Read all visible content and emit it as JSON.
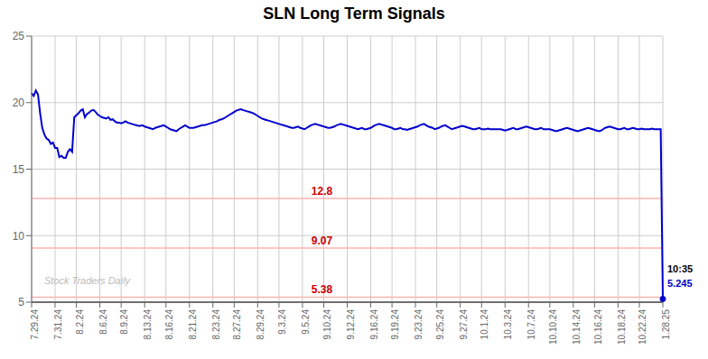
{
  "chart_data": {
    "type": "line",
    "title": "SLN Long Term Signals",
    "color": "#0000cc",
    "grid": true,
    "ylim": [
      5,
      25
    ],
    "yticks": [
      5,
      10,
      15,
      20,
      25
    ],
    "categories": [
      "7.29.24",
      null,
      null,
      null,
      null,
      null,
      null,
      null,
      null,
      null,
      null,
      "7.31.24",
      null,
      null,
      null,
      null,
      null,
      null,
      null,
      null,
      null,
      "8.2.24",
      null,
      null,
      null,
      null,
      null,
      null,
      null,
      null,
      null,
      null,
      "8.6.24",
      null,
      null,
      null,
      null,
      null,
      null,
      null,
      null,
      null,
      "8.9.24",
      null,
      null,
      null,
      null,
      null,
      null,
      null,
      null,
      null,
      null,
      "8.13.24",
      null,
      null,
      null,
      null,
      null,
      null,
      null,
      null,
      null,
      "8.16.24",
      null,
      null,
      null,
      null,
      null,
      null,
      null,
      null,
      null,
      null,
      "8.21.24",
      null,
      null,
      null,
      null,
      null,
      null,
      null,
      null,
      null,
      null,
      "8.23.24",
      null,
      null,
      null,
      null,
      null,
      null,
      null,
      null,
      null,
      "8.27.24",
      null,
      null,
      null,
      null,
      null,
      null,
      null,
      null,
      null,
      null,
      "8.29.24",
      null,
      null,
      null,
      null,
      null,
      null,
      null,
      null,
      null,
      "9.3.24",
      null,
      null,
      null,
      null,
      null,
      null,
      null,
      null,
      null,
      null,
      "9.5.24",
      null,
      null,
      null,
      null,
      null,
      null,
      null,
      null,
      null,
      "9.10.24",
      null,
      null,
      null,
      null,
      null,
      null,
      null,
      null,
      null,
      null,
      "9.12.24",
      null,
      null,
      null,
      null,
      null,
      null,
      null,
      null,
      null,
      null,
      "9.16.24",
      null,
      null,
      null,
      null,
      null,
      null,
      null,
      null,
      null,
      "9.19.24",
      null,
      null,
      null,
      null,
      null,
      null,
      null,
      null,
      null,
      null,
      "9.23.24",
      null,
      null,
      null,
      null,
      null,
      null,
      null,
      null,
      null,
      "9.25.24",
      null,
      null,
      null,
      null,
      null,
      null,
      null,
      null,
      null,
      null,
      "9.27.24",
      null,
      null,
      null,
      null,
      null,
      null,
      null,
      null,
      null,
      "10.1.24",
      null,
      null,
      null,
      null,
      null,
      null,
      null,
      null,
      null,
      null,
      "10.3.24",
      null,
      null,
      null,
      null,
      null,
      null,
      null,
      null,
      null,
      null,
      "10.7.24",
      null,
      null,
      null,
      null,
      null,
      null,
      null,
      null,
      null,
      "10.10.24",
      null,
      null,
      null,
      null,
      null,
      null,
      null,
      null,
      null,
      null,
      "10.14.24",
      null,
      null,
      null,
      null,
      null,
      null,
      null,
      null,
      null,
      "10.16.24",
      null,
      null,
      null,
      null,
      null,
      null,
      null,
      null,
      null,
      null,
      "10.18.24",
      null,
      null,
      null,
      null,
      null,
      null,
      null,
      null,
      null,
      "10.22.24",
      null,
      null,
      null,
      null,
      null,
      null,
      null,
      null,
      null,
      null,
      "1.28.25"
    ],
    "values": [
      20.7,
      20.5,
      20.9,
      20.6,
      19.2,
      18.1,
      17.6,
      17.3,
      17.2,
      16.9,
      17.0,
      16.6,
      16.6,
      15.9,
      16.0,
      15.85,
      15.85,
      16.3,
      16.5,
      16.3,
      18.9,
      19.05,
      19.2,
      19.4,
      19.5,
      18.9,
      19.15,
      19.25,
      19.4,
      19.45,
      19.3,
      19.1,
      19.0,
      18.9,
      18.85,
      18.8,
      18.9,
      18.7,
      18.75,
      18.6,
      18.5,
      18.5,
      18.45,
      18.5,
      18.6,
      18.5,
      18.45,
      18.4,
      18.35,
      18.3,
      18.25,
      18.25,
      18.3,
      18.2,
      18.15,
      18.1,
      18.05,
      18.0,
      18.1,
      18.15,
      18.2,
      18.25,
      18.3,
      18.2,
      18.1,
      18.0,
      17.95,
      17.9,
      17.85,
      18.0,
      18.1,
      18.2,
      18.3,
      18.2,
      18.1,
      18.1,
      18.1,
      18.15,
      18.2,
      18.25,
      18.3,
      18.3,
      18.35,
      18.4,
      18.45,
      18.5,
      18.55,
      18.6,
      18.7,
      18.75,
      18.8,
      18.9,
      19.0,
      19.1,
      19.2,
      19.3,
      19.4,
      19.45,
      19.5,
      19.45,
      19.4,
      19.35,
      19.3,
      19.25,
      19.2,
      19.1,
      19.0,
      18.9,
      18.8,
      18.75,
      18.7,
      18.65,
      18.6,
      18.55,
      18.5,
      18.45,
      18.4,
      18.35,
      18.3,
      18.25,
      18.2,
      18.15,
      18.1,
      18.1,
      18.15,
      18.2,
      18.1,
      18.05,
      18.0,
      18.1,
      18.2,
      18.3,
      18.35,
      18.4,
      18.35,
      18.3,
      18.25,
      18.2,
      18.15,
      18.1,
      18.1,
      18.15,
      18.2,
      18.3,
      18.35,
      18.4,
      18.35,
      18.3,
      18.25,
      18.2,
      18.15,
      18.1,
      18.05,
      18.0,
      18.05,
      18.1,
      18.0,
      18.0,
      18.05,
      18.1,
      18.2,
      18.3,
      18.35,
      18.4,
      18.35,
      18.3,
      18.25,
      18.2,
      18.15,
      18.1,
      18.0,
      18.0,
      18.05,
      18.1,
      18.0,
      18.0,
      17.95,
      18.0,
      18.05,
      18.1,
      18.15,
      18.2,
      18.3,
      18.35,
      18.4,
      18.3,
      18.2,
      18.15,
      18.1,
      18.0,
      18.05,
      18.1,
      18.2,
      18.25,
      18.3,
      18.2,
      18.1,
      18.0,
      18.05,
      18.1,
      18.15,
      18.2,
      18.25,
      18.2,
      18.15,
      18.1,
      18.05,
      18.0,
      18.0,
      18.05,
      18.1,
      18.0,
      18.0,
      18.0,
      18.05,
      18.0,
      18.0,
      18.0,
      18.0,
      18.0,
      18.0,
      17.95,
      17.9,
      17.95,
      18.0,
      18.05,
      18.1,
      18.0,
      18.0,
      18.05,
      18.1,
      18.15,
      18.2,
      18.15,
      18.1,
      18.05,
      18.0,
      18.0,
      18.05,
      18.1,
      18.0,
      18.0,
      18.0,
      18.0,
      17.95,
      17.9,
      17.85,
      17.9,
      17.95,
      18.0,
      18.05,
      18.1,
      18.05,
      18.0,
      17.95,
      17.9,
      17.85,
      17.9,
      17.95,
      18.0,
      18.05,
      18.1,
      18.05,
      18.0,
      17.95,
      17.9,
      17.85,
      17.9,
      18.0,
      18.1,
      18.15,
      18.2,
      18.15,
      18.1,
      18.05,
      18.0,
      18.0,
      18.05,
      18.1,
      18.0,
      18.0,
      18.05,
      18.1,
      18.05,
      18.0,
      18.0,
      18.05,
      18.0,
      18.0,
      18.0,
      18.0,
      18.05,
      18.0,
      18.0,
      18.0,
      18.0,
      5.245
    ],
    "hlines": [
      {
        "y": 12.8,
        "color": "#ffb3b3",
        "label": "12.8",
        "label_color": "#cc0000"
      },
      {
        "y": 9.07,
        "color": "#ffb3b3",
        "label": "9.07",
        "label_color": "#cc0000"
      },
      {
        "y": 5.38,
        "color": "#ffb3b3",
        "label": "5.38",
        "label_color": "#cc0000"
      },
      {
        "y": 5.0,
        "color": "#555555"
      }
    ],
    "annotations": [
      {
        "text": "10:35",
        "color": "#000000"
      },
      {
        "text": "5.245",
        "color": "#0000cc"
      }
    ],
    "watermark": {
      "text": "Stock Traders Daily",
      "color": "#bbbbbb"
    }
  }
}
